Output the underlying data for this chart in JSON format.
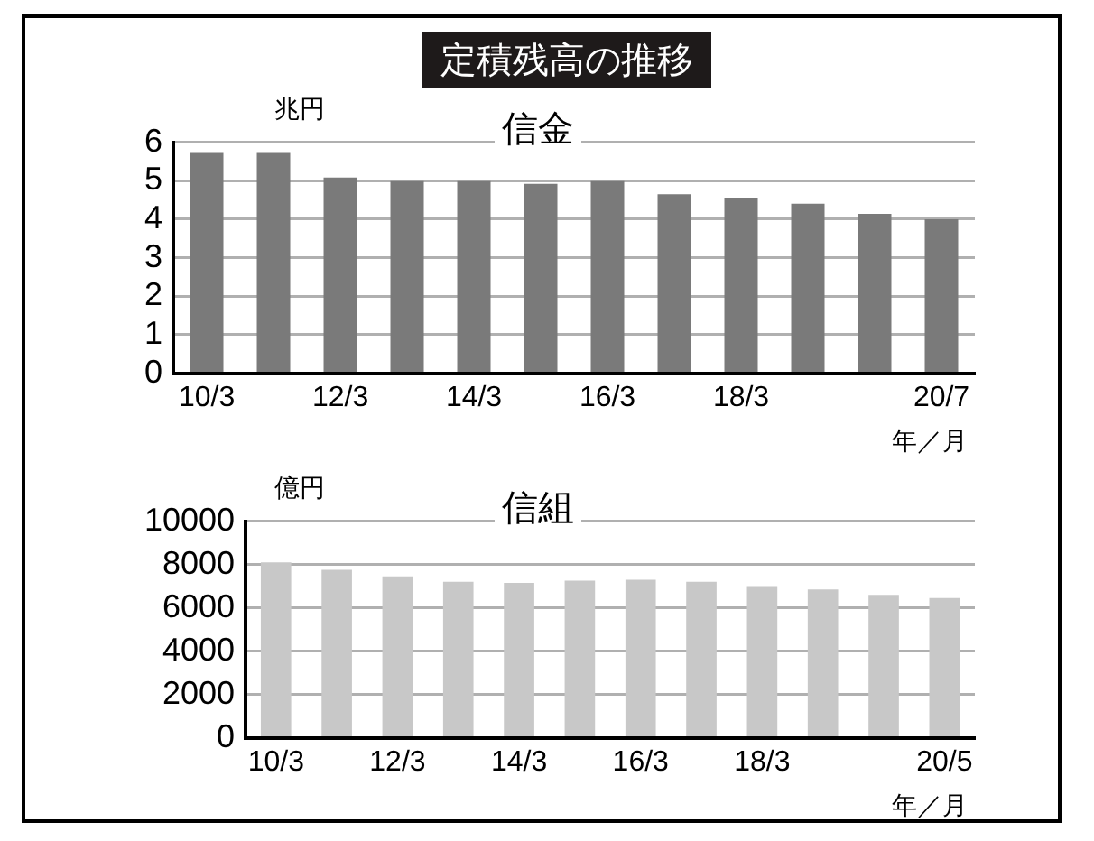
{
  "chart_data": [
    {
      "type": "bar",
      "title": "定積残高の推移",
      "subtitle": "信金",
      "ylabel": "兆円",
      "xlabel": "年／月",
      "categories": [
        "10/3",
        null,
        "12/3",
        null,
        "14/3",
        null,
        "16/3",
        null,
        "18/3",
        null,
        null,
        "20/7"
      ],
      "values": [
        5.72,
        5.72,
        5.08,
        4.99,
        4.99,
        4.92,
        4.99,
        4.65,
        4.56,
        4.4,
        4.14,
        4.0
      ],
      "color": "#7a7a7a",
      "ylim": [
        0,
        6
      ],
      "yticks": [
        0,
        1,
        2,
        3,
        4,
        5,
        6
      ],
      "grid": "y"
    },
    {
      "type": "bar",
      "subtitle": "信組",
      "ylabel": "億円",
      "xlabel": "年／月",
      "categories": [
        "10/3",
        null,
        "12/3",
        null,
        "14/3",
        null,
        "16/3",
        null,
        "18/3",
        null,
        null,
        "20/5"
      ],
      "values": [
        8100,
        7750,
        7450,
        7200,
        7150,
        7250,
        7300,
        7200,
        7000,
        6850,
        6600,
        6450
      ],
      "color": "#c8c8c8",
      "ylim": [
        0,
        10000
      ],
      "yticks": [
        0,
        2000,
        4000,
        6000,
        8000,
        10000
      ],
      "grid": "y"
    }
  ]
}
